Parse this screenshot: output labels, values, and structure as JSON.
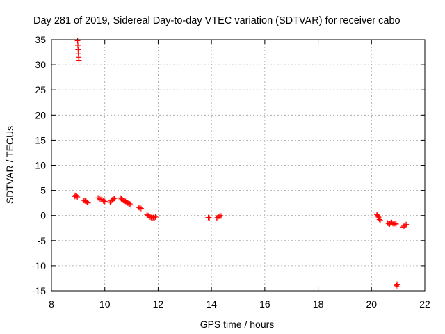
{
  "chart_data": {
    "type": "scatter",
    "title": "Day 281 of 2019, Sidereal Day-to-day VTEC variation (SDTVAR) for receiver cabo",
    "xlabel": "GPS time / hours",
    "ylabel": "SDTVAR / TECUs",
    "xlim": [
      8,
      22
    ],
    "ylim": [
      -15,
      35
    ],
    "xticks": [
      8,
      10,
      12,
      14,
      16,
      18,
      20,
      22
    ],
    "yticks": [
      -15,
      -10,
      -5,
      0,
      5,
      10,
      15,
      20,
      25,
      30,
      35
    ],
    "grid": true,
    "marker": "+",
    "series": [
      {
        "name": "SDTVAR",
        "color": "#ff0000",
        "points": [
          [
            8.98,
            34.8
          ],
          [
            8.99,
            33.9
          ],
          [
            9.0,
            33.0
          ],
          [
            9.01,
            32.2
          ],
          [
            9.02,
            31.5
          ],
          [
            9.03,
            30.9
          ],
          [
            8.88,
            3.8
          ],
          [
            8.91,
            4.0
          ],
          [
            8.94,
            3.9
          ],
          [
            8.97,
            3.7
          ],
          [
            9.22,
            3.0
          ],
          [
            9.26,
            2.9
          ],
          [
            9.3,
            2.8
          ],
          [
            9.34,
            2.6
          ],
          [
            9.37,
            2.5
          ],
          [
            9.75,
            3.5
          ],
          [
            9.8,
            3.3
          ],
          [
            9.85,
            3.2
          ],
          [
            9.9,
            3.1
          ],
          [
            9.95,
            2.9
          ],
          [
            10.0,
            2.8
          ],
          [
            10.2,
            2.6
          ],
          [
            10.24,
            2.9
          ],
          [
            10.28,
            3.1
          ],
          [
            10.32,
            3.3
          ],
          [
            10.36,
            3.4
          ],
          [
            10.58,
            3.5
          ],
          [
            10.62,
            3.3
          ],
          [
            10.66,
            3.1
          ],
          [
            10.7,
            3.0
          ],
          [
            10.74,
            2.9
          ],
          [
            10.78,
            2.8
          ],
          [
            10.82,
            2.6
          ],
          [
            10.86,
            2.5
          ],
          [
            10.9,
            2.4
          ],
          [
            10.94,
            2.3
          ],
          [
            10.98,
            2.1
          ],
          [
            11.28,
            1.6
          ],
          [
            11.32,
            1.5
          ],
          [
            11.36,
            1.4
          ],
          [
            11.58,
            0.2
          ],
          [
            11.62,
            0.0
          ],
          [
            11.66,
            -0.1
          ],
          [
            11.7,
            -0.3
          ],
          [
            11.74,
            -0.4
          ],
          [
            11.78,
            -0.5
          ],
          [
            11.82,
            -0.4
          ],
          [
            11.86,
            -0.5
          ],
          [
            11.9,
            -0.3
          ],
          [
            13.88,
            -0.4
          ],
          [
            13.92,
            -0.5
          ],
          [
            14.2,
            -0.5
          ],
          [
            14.24,
            -0.4
          ],
          [
            14.28,
            -0.2
          ],
          [
            14.32,
            0.0
          ],
          [
            14.36,
            -0.1
          ],
          [
            20.2,
            0.2
          ],
          [
            20.23,
            0.0
          ],
          [
            20.26,
            -0.3
          ],
          [
            20.28,
            -0.5
          ],
          [
            20.3,
            -0.8
          ],
          [
            20.33,
            -1.0
          ],
          [
            20.6,
            -1.5
          ],
          [
            20.64,
            -1.6
          ],
          [
            20.68,
            -1.7
          ],
          [
            20.72,
            -1.5
          ],
          [
            20.76,
            -1.4
          ],
          [
            20.8,
            -1.6
          ],
          [
            20.84,
            -1.8
          ],
          [
            20.88,
            -1.6
          ],
          [
            20.92,
            -1.7
          ],
          [
            20.93,
            -14.0
          ],
          [
            20.96,
            -13.7
          ],
          [
            20.99,
            -14.2
          ],
          [
            21.18,
            -2.3
          ],
          [
            21.22,
            -2.1
          ],
          [
            21.26,
            -1.9
          ],
          [
            21.3,
            -1.8
          ]
        ]
      }
    ]
  }
}
